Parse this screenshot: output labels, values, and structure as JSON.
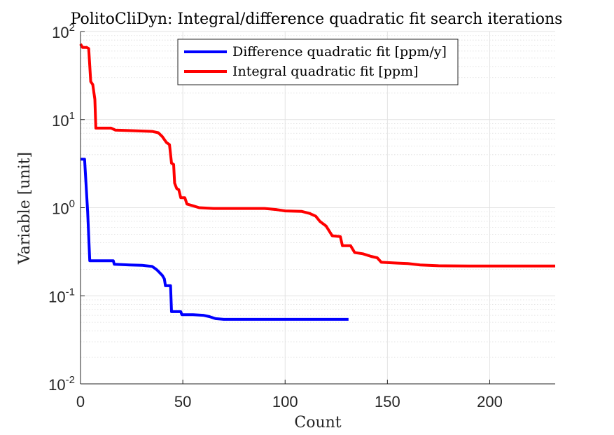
{
  "chart_data": {
    "type": "line",
    "title": "PolitoCliDyn: Integral/difference quadratic fit search iterations",
    "xlabel": "Count",
    "ylabel": "Variable [unit]",
    "xlim": [
      0,
      232
    ],
    "ylim": [
      0.01,
      100
    ],
    "yscale": "log",
    "grid": true,
    "legend_position": "top-center",
    "xticks": [
      {
        "value": 0,
        "label": "0"
      },
      {
        "value": 50,
        "label": "50"
      },
      {
        "value": 100,
        "label": "100"
      },
      {
        "value": 150,
        "label": "150"
      },
      {
        "value": 200,
        "label": "200"
      }
    ],
    "yticks": [
      {
        "value": 0.01,
        "base": "10",
        "exp": "-2"
      },
      {
        "value": 0.1,
        "base": "10",
        "exp": "-1"
      },
      {
        "value": 1,
        "base": "10",
        "exp": "0"
      },
      {
        "value": 10,
        "base": "10",
        "exp": "1"
      },
      {
        "value": 100,
        "base": "10",
        "exp": "2"
      }
    ],
    "series": [
      {
        "name": "Difference quadratic fit [ppm/y]",
        "color": "#0000ff",
        "points": [
          [
            0,
            3.55
          ],
          [
            2,
            3.55
          ],
          [
            3.5,
            0.9
          ],
          [
            4.5,
            0.25
          ],
          [
            16,
            0.25
          ],
          [
            16.5,
            0.228
          ],
          [
            24,
            0.224
          ],
          [
            30,
            0.222
          ],
          [
            35,
            0.215
          ],
          [
            37,
            0.2
          ],
          [
            38,
            0.19
          ],
          [
            40,
            0.17
          ],
          [
            41,
            0.155
          ],
          [
            41.5,
            0.13
          ],
          [
            44,
            0.13
          ],
          [
            44.5,
            0.066
          ],
          [
            49,
            0.066
          ],
          [
            49.5,
            0.061
          ],
          [
            55,
            0.061
          ],
          [
            60,
            0.06
          ],
          [
            63,
            0.058
          ],
          [
            66,
            0.055
          ],
          [
            70,
            0.054
          ],
          [
            80,
            0.054
          ],
          [
            100,
            0.054
          ],
          [
            131,
            0.054
          ]
        ]
      },
      {
        "name": "Integral quadratic fit [ppm]",
        "color": "#ff0000",
        "points": [
          [
            0,
            72
          ],
          [
            1,
            66
          ],
          [
            3,
            66
          ],
          [
            4,
            64
          ],
          [
            5,
            27
          ],
          [
            6,
            25
          ],
          [
            7,
            17
          ],
          [
            7.5,
            8.0
          ],
          [
            15,
            8.0
          ],
          [
            17,
            7.6
          ],
          [
            25,
            7.5
          ],
          [
            35,
            7.35
          ],
          [
            38,
            7.1
          ],
          [
            40,
            6.4
          ],
          [
            42,
            5.5
          ],
          [
            43.5,
            5.2
          ],
          [
            44.5,
            3.2
          ],
          [
            45.5,
            3.1
          ],
          [
            46,
            1.9
          ],
          [
            47,
            1.65
          ],
          [
            48,
            1.6
          ],
          [
            49,
            1.3
          ],
          [
            51,
            1.3
          ],
          [
            52,
            1.1
          ],
          [
            55,
            1.05
          ],
          [
            58,
            1.0
          ],
          [
            65,
            0.98
          ],
          [
            80,
            0.98
          ],
          [
            90,
            0.98
          ],
          [
            96,
            0.95
          ],
          [
            100,
            0.92
          ],
          [
            108,
            0.91
          ],
          [
            112,
            0.86
          ],
          [
            115,
            0.8
          ],
          [
            117,
            0.7
          ],
          [
            120,
            0.62
          ],
          [
            123,
            0.48
          ],
          [
            127,
            0.47
          ],
          [
            128,
            0.37
          ],
          [
            132,
            0.37
          ],
          [
            134,
            0.31
          ],
          [
            138,
            0.3
          ],
          [
            142,
            0.28
          ],
          [
            145,
            0.27
          ],
          [
            147,
            0.24
          ],
          [
            155,
            0.235
          ],
          [
            160,
            0.232
          ],
          [
            166,
            0.224
          ],
          [
            175,
            0.219
          ],
          [
            190,
            0.218
          ],
          [
            232,
            0.218
          ]
        ]
      }
    ]
  }
}
